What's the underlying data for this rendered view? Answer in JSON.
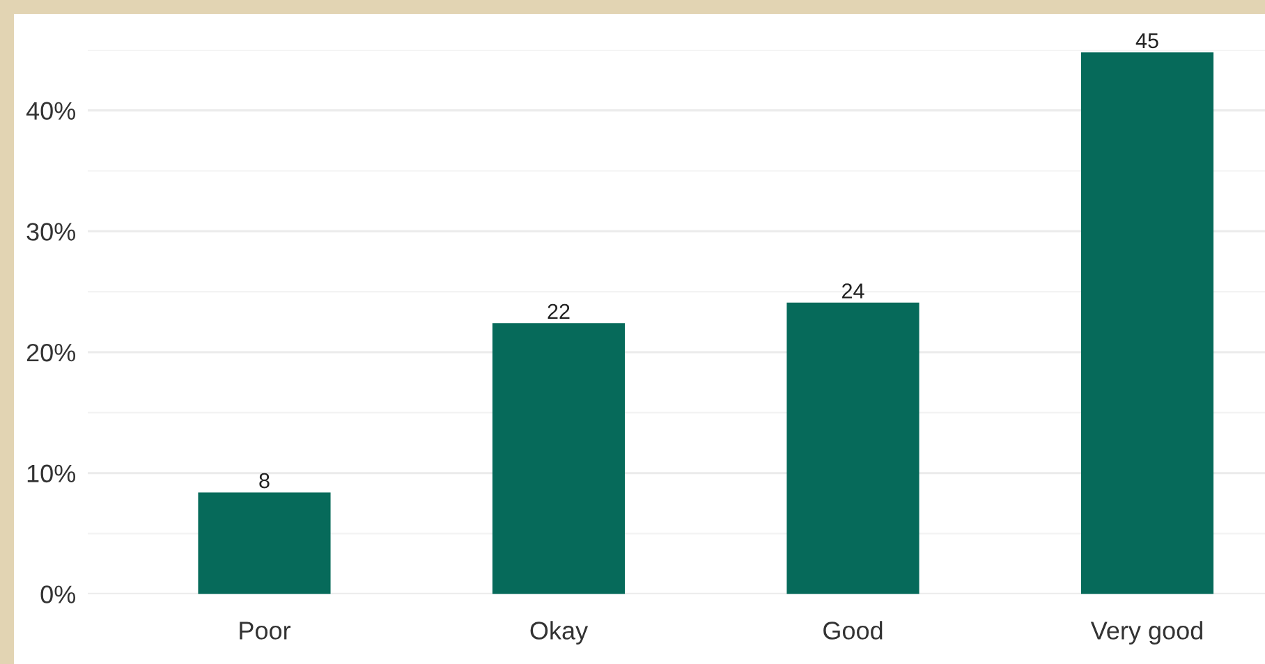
{
  "chart_data": {
    "type": "bar",
    "categories": [
      "Poor",
      "Okay",
      "Good",
      "Very good"
    ],
    "values": [
      8.4,
      22.4,
      24.1,
      44.8
    ],
    "value_labels": [
      "8",
      "22",
      "24",
      "45"
    ],
    "color": "#066a5a",
    "ylim": [
      0,
      45
    ],
    "yticks": [
      {
        "value": 0,
        "label": "0%"
      },
      {
        "value": 5,
        "label": null
      },
      {
        "value": 10,
        "label": "10%"
      },
      {
        "value": 15,
        "label": null
      },
      {
        "value": 20,
        "label": "20%"
      },
      {
        "value": 25,
        "label": null
      },
      {
        "value": 30,
        "label": "30%"
      },
      {
        "value": 35,
        "label": null
      },
      {
        "value": 40,
        "label": "40%"
      },
      {
        "value": 45,
        "label": null
      }
    ],
    "grid": "y"
  }
}
